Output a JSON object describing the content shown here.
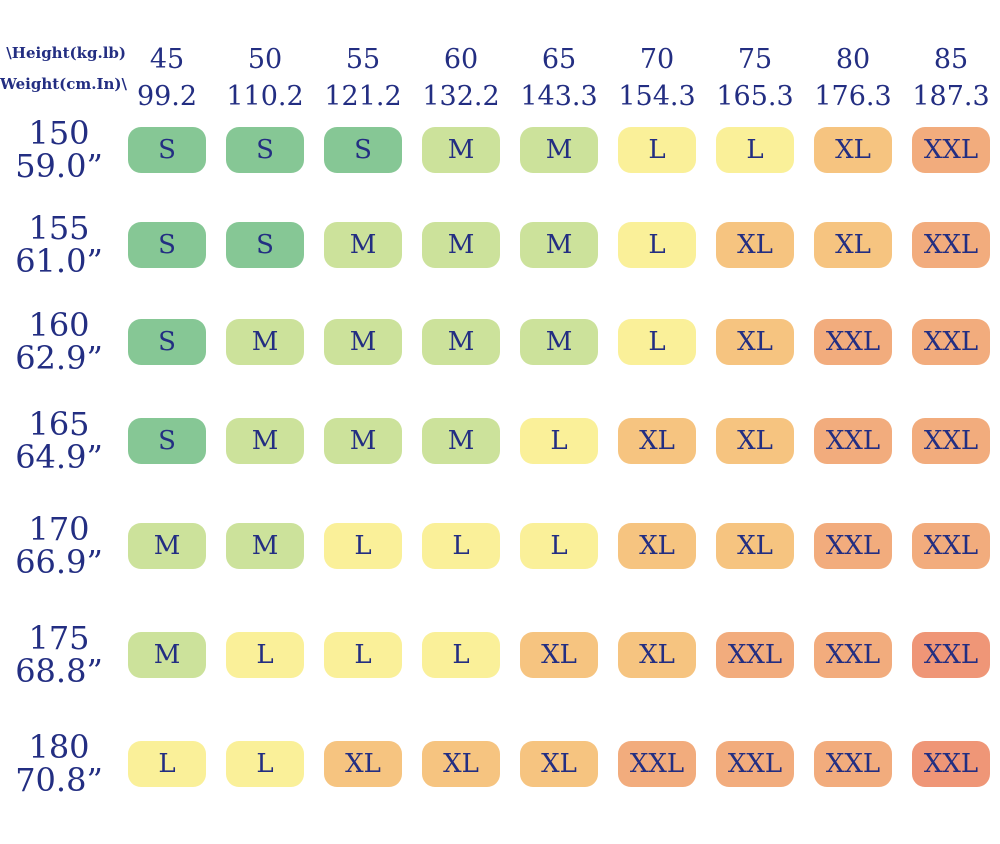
{
  "chart_data": {
    "type": "table",
    "title": "",
    "corner_line1": "\\Height(kg.lb)",
    "corner_line2": "Weight(cm.In)\\",
    "weight_columns": [
      {
        "kg": "45",
        "lb": "99.2"
      },
      {
        "kg": "50",
        "lb": "110.2"
      },
      {
        "kg": "55",
        "lb": "121.2"
      },
      {
        "kg": "60",
        "lb": "132.2"
      },
      {
        "kg": "65",
        "lb": "143.3"
      },
      {
        "kg": "70",
        "lb": "154.3"
      },
      {
        "kg": "75",
        "lb": "165.3"
      },
      {
        "kg": "80",
        "lb": "176.3"
      },
      {
        "kg": "85",
        "lb": "187.3"
      }
    ],
    "height_rows": [
      {
        "cm": "150",
        "in": "59.0”"
      },
      {
        "cm": "155",
        "in": "61.0”"
      },
      {
        "cm": "160",
        "in": "62.9”"
      },
      {
        "cm": "165",
        "in": "64.9”"
      },
      {
        "cm": "170",
        "in": "66.9”"
      },
      {
        "cm": "175",
        "in": "68.8”"
      },
      {
        "cm": "180",
        "in": "70.8”"
      }
    ],
    "sizes": [
      [
        "S",
        "S",
        "S",
        "M",
        "M",
        "L",
        "L",
        "XL",
        "XXL"
      ],
      [
        "S",
        "S",
        "M",
        "M",
        "M",
        "L",
        "XL",
        "XL",
        "XXL"
      ],
      [
        "S",
        "M",
        "M",
        "M",
        "M",
        "L",
        "XL",
        "XXL",
        "XXL"
      ],
      [
        "S",
        "M",
        "M",
        "M",
        "L",
        "XL",
        "XL",
        "XXL",
        "XXL"
      ],
      [
        "M",
        "M",
        "L",
        "L",
        "L",
        "XL",
        "XL",
        "XXL",
        "XXL"
      ],
      [
        "M",
        "L",
        "L",
        "L",
        "XL",
        "XL",
        "XXL",
        "XXL",
        "XXL"
      ],
      [
        "L",
        "L",
        "XL",
        "XL",
        "XL",
        "XXL",
        "XXL",
        "XXL",
        "XXL"
      ]
    ],
    "palette": {
      "S": "#86C795",
      "M": "#CCE29B",
      "L": "#FAF099",
      "XL": "#F6C480",
      "XXL": "#F2AC7D"
    },
    "hot_color": "#EF9677",
    "hot_cells": [
      [
        5,
        8
      ],
      [
        6,
        8
      ]
    ],
    "text_color": "#232E82",
    "background": "#FFFFFF",
    "grid": false,
    "legend": false
  }
}
